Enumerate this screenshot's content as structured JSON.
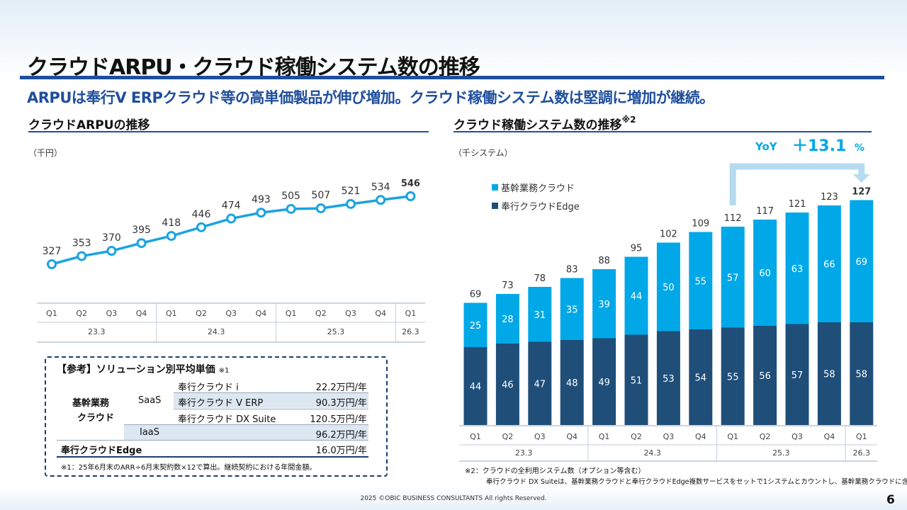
{
  "title": "クラウドARPU・クラウド稼働システム数の推移",
  "subtitle": "ARPUは奉行V ERPクラウド等の高単価製品が伸び増加。クラウド稼働システム数は堅調に増加が継続。",
  "arpu_section": {
    "title": "クラウドARPUの推移",
    "unit": "（千円）"
  },
  "systems_section": {
    "title": "クラウド稼働システム数の推移",
    "title_note": "※2",
    "unit": "（千システム）"
  },
  "chart_data": [
    {
      "type": "line",
      "title": "クラウドARPUの推移",
      "unit": "（千円）",
      "x": [
        "Q1",
        "Q2",
        "Q3",
        "Q4",
        "Q1",
        "Q2",
        "Q3",
        "Q4",
        "Q1",
        "Q2",
        "Q3",
        "Q4",
        "Q1"
      ],
      "x_groups": [
        {
          "label": "23.3",
          "count": 4
        },
        {
          "label": "24.3",
          "count": 4
        },
        {
          "label": "25.3",
          "count": 4
        },
        {
          "label": "26.3",
          "count": 1
        }
      ],
      "values": [
        327,
        353,
        370,
        395,
        418,
        446,
        474,
        493,
        505,
        507,
        521,
        534,
        546
      ],
      "highlight_last": true,
      "color": "#1aa3e0"
    },
    {
      "type": "bar",
      "stacked": true,
      "title": "クラウド稼働システム数の推移",
      "unit": "（千システム）",
      "categories": [
        "Q1",
        "Q2",
        "Q3",
        "Q4",
        "Q1",
        "Q2",
        "Q3",
        "Q4",
        "Q1",
        "Q2",
        "Q3",
        "Q4",
        "Q1"
      ],
      "x_groups": [
        {
          "label": "23.3",
          "count": 4
        },
        {
          "label": "24.3",
          "count": 4
        },
        {
          "label": "25.3",
          "count": 4
        },
        {
          "label": "26.3",
          "count": 1
        }
      ],
      "series": [
        {
          "name": "奉行クラウドEdge",
          "color": "#1f4e79",
          "values": [
            44,
            46,
            47,
            48,
            49,
            51,
            53,
            54,
            55,
            56,
            57,
            58,
            58
          ]
        },
        {
          "name": "基幹業務クラウド",
          "color": "#00a8e8",
          "values": [
            25,
            28,
            31,
            35,
            39,
            44,
            50,
            55,
            57,
            60,
            63,
            66,
            69
          ]
        }
      ],
      "totals": [
        69,
        73,
        78,
        83,
        88,
        95,
        102,
        109,
        112,
        117,
        121,
        123,
        127
      ],
      "legend_position": "top-left",
      "yoy": {
        "label": "YoY",
        "value": "＋13.1",
        "suffix": "%",
        "color": "#00a8e8"
      }
    }
  ],
  "reference": {
    "title": "【参考】ソリューション別平均単価",
    "title_note": "※1",
    "group_label_line1": "基幹業務",
    "group_label_line2": "クラウド",
    "saas_label": "SaaS",
    "iaas_label": "IaaS",
    "rows": [
      {
        "product": "奉行クラウド i",
        "price": "22.2万円/年"
      },
      {
        "product": "奉行クラウド V ERP",
        "price": "90.3万円/年"
      },
      {
        "product": "奉行クラウド DX Suite",
        "price": "120.5万円/年"
      }
    ],
    "iaas_price": "96.2万円/年",
    "edge_label": "奉行クラウドEdge",
    "edge_price": "16.0万円/年",
    "note": "※1：25年6月末のARR÷6月末契約数×12で算出。継続契約における年間金額。"
  },
  "notes": {
    "note2_line1": "※2：クラウドの全利用システム数（オプション等含む）",
    "note2_line2": "奉行クラウド DX Suiteは、基幹業務クラウドと奉行クラウドEdge複数サービスをセットで1システムとカウントし、基幹業務クラウドに含める"
  },
  "footer": "2025 ©OBIC BUSINESS CONSULTANTS All rights Reserved.",
  "page_number": "6"
}
